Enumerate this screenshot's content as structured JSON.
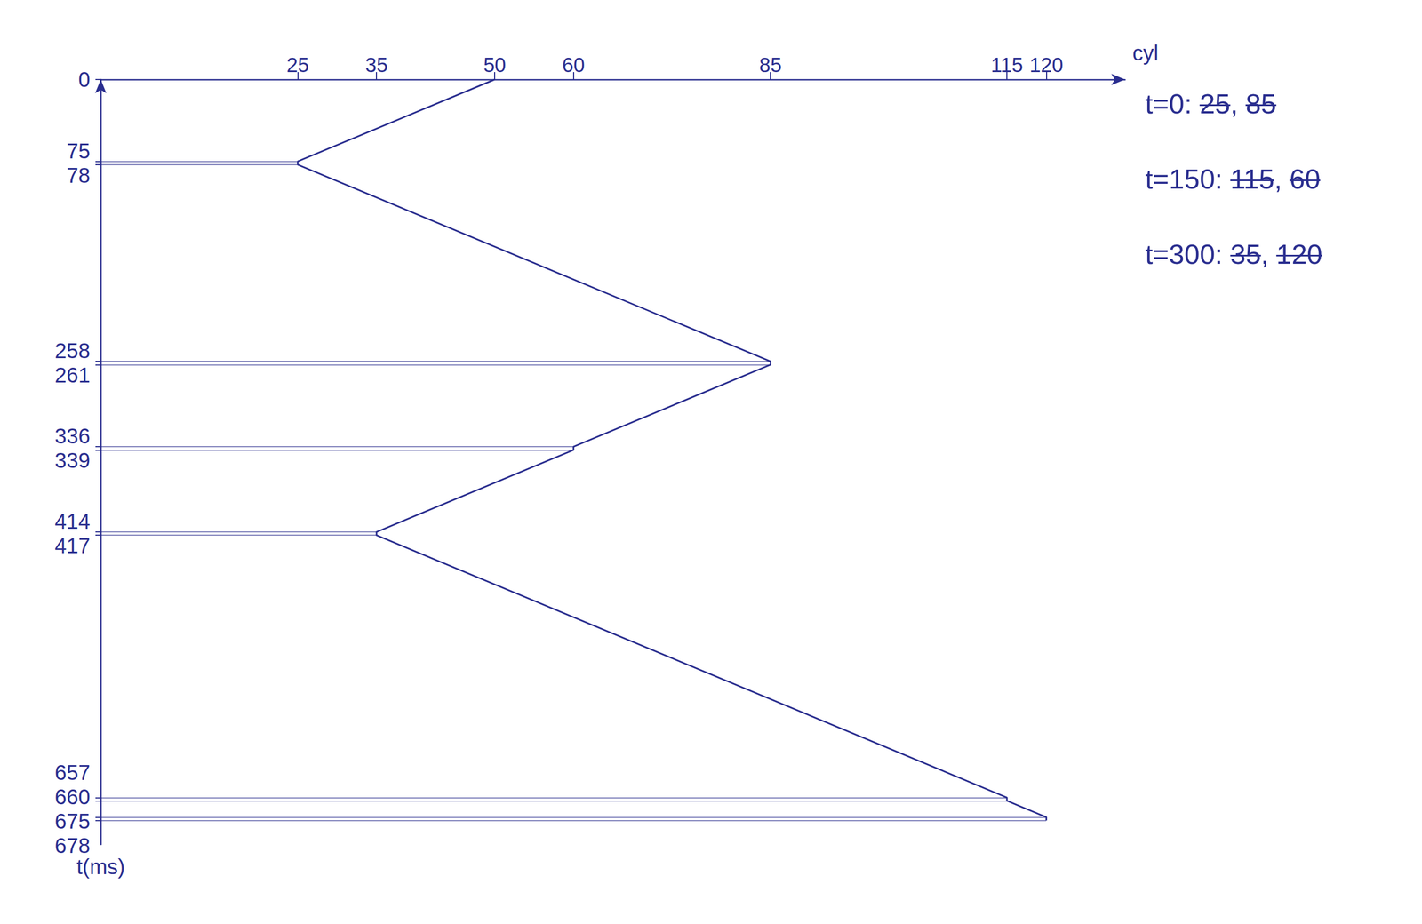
{
  "chart_data": {
    "type": "line",
    "x_label": "cyl",
    "y_label": "t(ms)",
    "x": [
      50,
      25,
      25,
      85,
      85,
      60,
      60,
      35,
      35,
      115,
      115,
      120,
      120
    ],
    "values": [
      0,
      75,
      78,
      258,
      261,
      336,
      339,
      414,
      417,
      657,
      660,
      675,
      678
    ],
    "color": "#2a2e8f",
    "xlim": [
      0,
      130
    ],
    "xticks": [
      25,
      35,
      50,
      60,
      85,
      115,
      120
    ],
    "ylim": [
      0,
      700
    ],
    "yticks": [
      0,
      75,
      78,
      258,
      261,
      336,
      339,
      414,
      417,
      657,
      660,
      675,
      678
    ],
    "grid": false,
    "annotations": [
      "t=0: 25, 85",
      "t=150: 115, 60",
      "t=300: 35, 120"
    ]
  }
}
